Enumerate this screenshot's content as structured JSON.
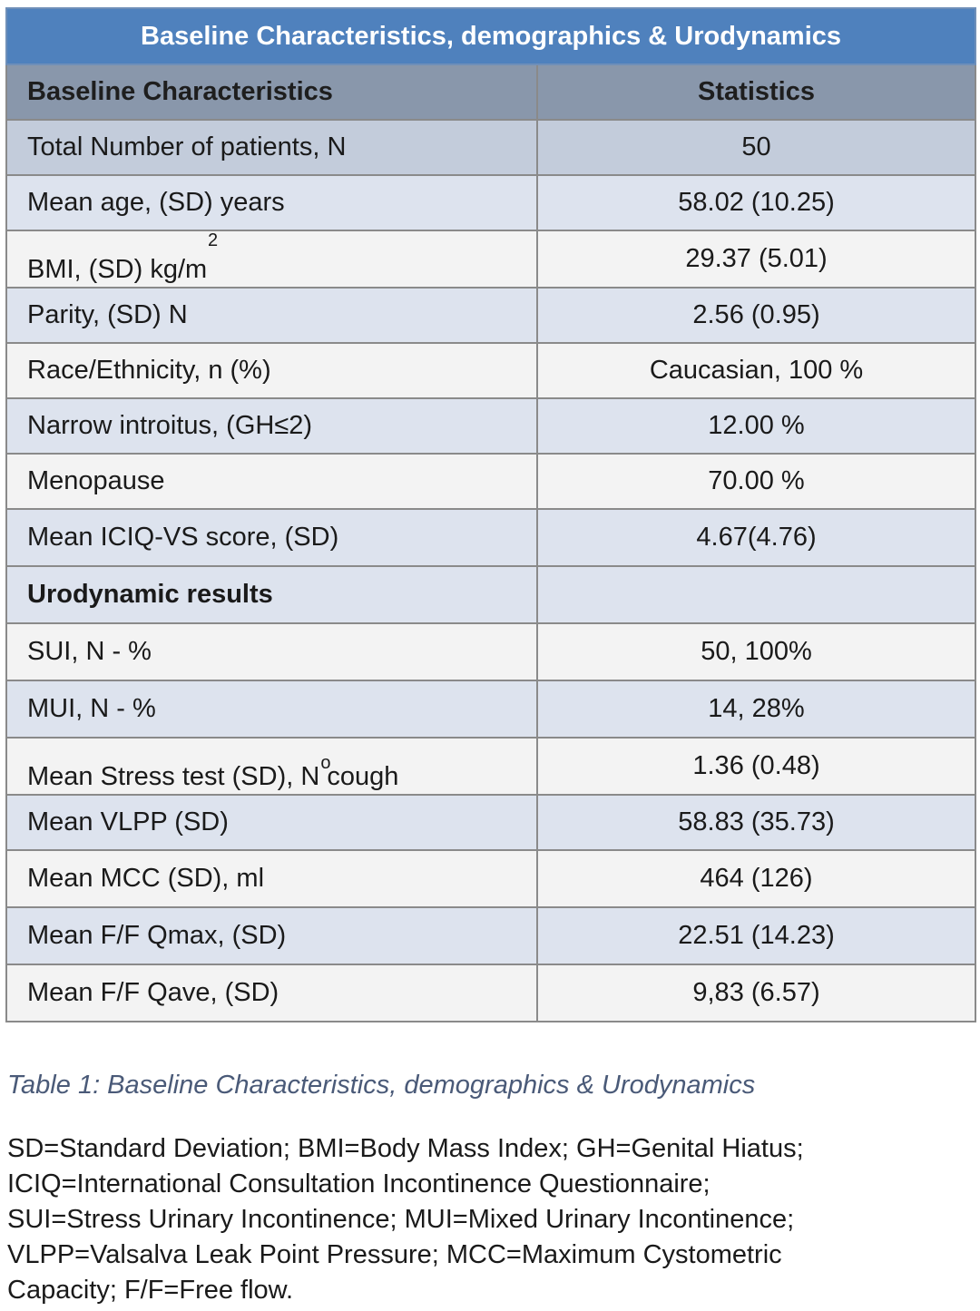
{
  "table": {
    "title": "Baseline Characteristics, demographics & Urodynamics",
    "headers": [
      "Baseline Characteristics",
      "Statistics"
    ],
    "rows": [
      {
        "label": "Total Number of patients, N",
        "value": "50"
      },
      {
        "label": "Mean age, (SD) years",
        "value": "58.02 (10.25)"
      },
      {
        "label": "BMI, (SD) kg/m",
        "label_sup": "2",
        "value": "29.37 (5.01)"
      },
      {
        "label": "Parity, (SD) N",
        "value": "2.56 (0.95)"
      },
      {
        "label": "Race/Ethnicity, n (%)",
        "value": "Caucasian, 100 %"
      },
      {
        "label": "Narrow introitus, (GH≤2)",
        "value": "12.00 %"
      },
      {
        "label": "Menopause",
        "value": "70.00 %"
      },
      {
        "label": "Mean ICIQ-VS score, (SD)",
        "value": "4.67(4.76)"
      },
      {
        "label": "Urodynamic results",
        "value": ""
      },
      {
        "label": "SUI, N - %",
        "value": "50, 100%"
      },
      {
        "label": "MUI, N - %",
        "value": "14, 28%"
      },
      {
        "label_pre": "Mean Stress test (SD), N",
        "label_sup": "o",
        "label_post": " cough",
        "value": "1.36 (0.48)"
      },
      {
        "label": "Mean VLPP (SD)",
        "value": "58.83 (35.73)"
      },
      {
        "label": "Mean MCC (SD), ml",
        "value": "464 (126)"
      },
      {
        "label": "Mean F/F Qmax, (SD)",
        "value": "22.51 (14.23)"
      },
      {
        "label": "Mean F/F Qave, (SD)",
        "value": "9,83 (6.57)"
      }
    ]
  },
  "caption": "Table 1: Baseline Characteristics, demographics & Urodynamics",
  "notes": [
    "SD=Standard Deviation; BMI=Body Mass Index; GH=Genital Hiatus;",
    "ICIQ=International Consultation Incontinence Questionnaire;",
    "SUI=Stress Urinary Incontinence; MUI=Mixed Urinary Incontinence;",
    "VLPP=Valsalva Leak Point Pressure; MCC=Maximum Cystometric",
    "Capacity; F/F=Free flow."
  ],
  "colors": {
    "title_bg": "#4f81bd",
    "header_bg": "#8997ab",
    "row_dark": "#c3ccdb",
    "row_mid": "#dde3ee",
    "row_light": "#f3f3f3",
    "caption_text": "#4a5a78"
  }
}
